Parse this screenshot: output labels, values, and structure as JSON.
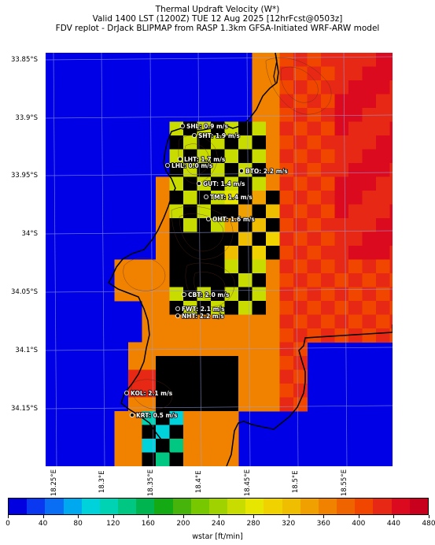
{
  "title": {
    "line1": "Thermal Updraft Velocity (W*)",
    "line2": "Valid 1400 LST (1200Z) TUE 12 Aug 2025 [12hrFcst@0503z]",
    "line3": "FDV replot - DrJack BLIPMAP from RASP 1.3km GFSA-Initiated WRF-ARW model"
  },
  "axes": {
    "y_labels": [
      "33.85°S",
      "33.9°S",
      "33.95°S",
      "34°S",
      "34.05°S",
      "34.1°S",
      "34.15°S"
    ],
    "x_labels": [
      "18.25°E",
      "18.3°E",
      "18.35°E",
      "18.4°E",
      "18.45°E",
      "18.5°E",
      "18.55°E"
    ]
  },
  "stations": [
    {
      "code": "SHL",
      "text": "SHL: 0.9 m/s"
    },
    {
      "code": "SHT",
      "text": "SHT: 1.9 m/s"
    },
    {
      "code": "LHT",
      "text": "LHT: 1.7 m/s"
    },
    {
      "code": "LHL",
      "text": "LHL: 0.0 m/s"
    },
    {
      "code": "BTO",
      "text": "BTO: 2.2 m/s"
    },
    {
      "code": "GUT",
      "text": "GUT: 1.4 m/s"
    },
    {
      "code": "TMT",
      "text": "TMT: 1.4 m/s"
    },
    {
      "code": "OHT",
      "text": "OHT: 1.6 m/s"
    },
    {
      "code": "CBT",
      "text": "CBT: 2.0 m/s"
    },
    {
      "code": "FWT",
      "text": "FWT: 2.1 m/s"
    },
    {
      "code": "NHT",
      "text": "NHT: 2.2 m/s"
    },
    {
      "code": "KOL",
      "text": "KOL: 2.1 m/s"
    },
    {
      "code": "KRT",
      "text": "KRT: 0.5 m/s"
    }
  ],
  "colorbar": {
    "ticks": [
      "0",
      "40",
      "80",
      "120",
      "160",
      "200",
      "240",
      "280",
      "320",
      "360",
      "400",
      "440",
      "480"
    ],
    "unit_label": "wstar [ft/min]",
    "colors": [
      "#0000e0",
      "#0a37f0",
      "#0a6ef5",
      "#00a8f0",
      "#00d2dc",
      "#00d2b4",
      "#00c882",
      "#00b450",
      "#14aa14",
      "#46b40a",
      "#78c800",
      "#a0d200",
      "#c8dc00",
      "#e6e600",
      "#f0d200",
      "#f0be00",
      "#f0a000",
      "#f08200",
      "#f06400",
      "#f04600",
      "#e62814",
      "#dc0a1e",
      "#c8001e"
    ]
  }
}
